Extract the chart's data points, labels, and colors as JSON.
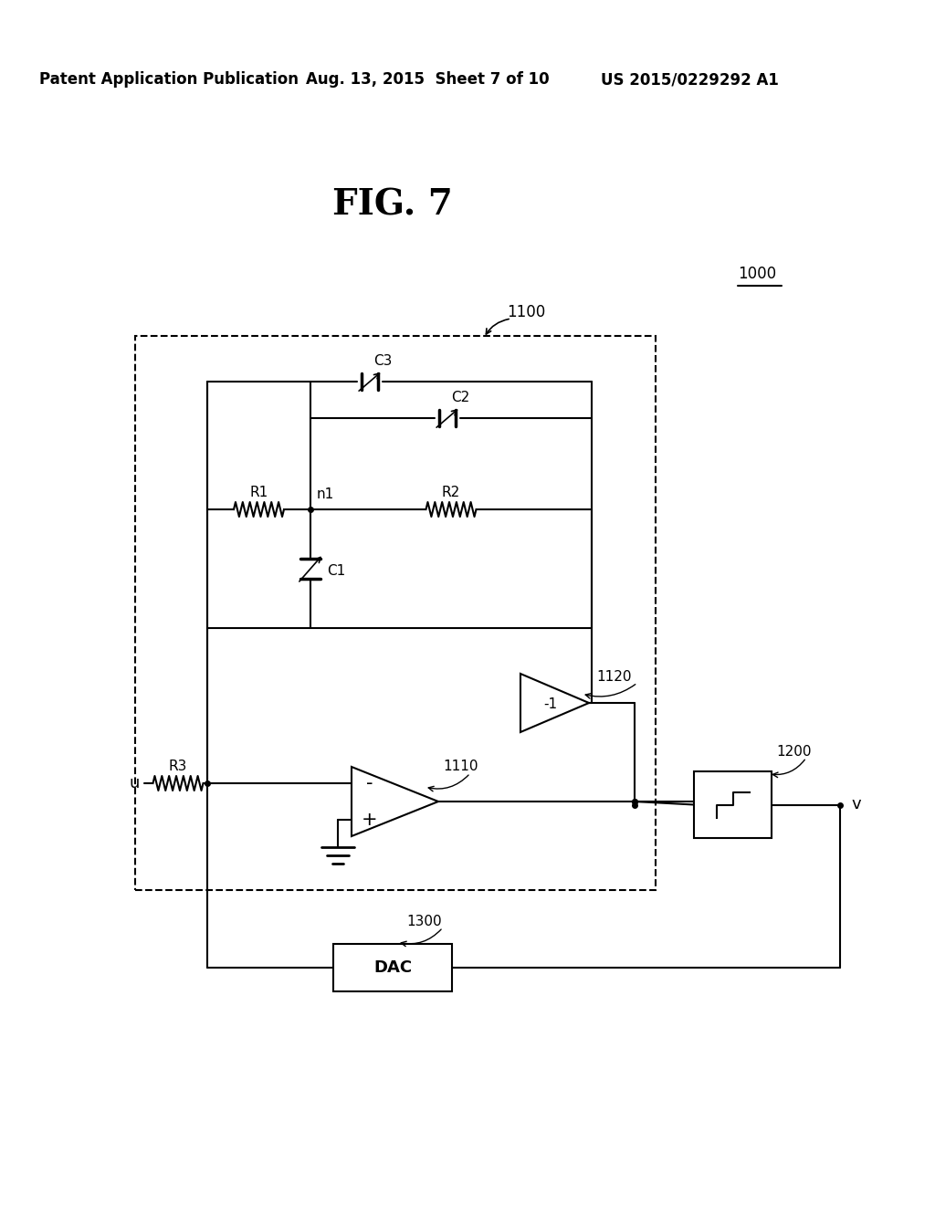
{
  "header_left": "Patent Application Publication",
  "header_mid": "Aug. 13, 2015  Sheet 7 of 10",
  "header_right": "US 2015/0229292 A1",
  "title": "FIG. 7",
  "label_1000": "1000",
  "label_1100": "1100",
  "label_1110": "1110",
  "label_1120": "1120",
  "label_1200": "1200",
  "label_1300": "1300",
  "bg_color": "#ffffff",
  "line_color": "#000000"
}
